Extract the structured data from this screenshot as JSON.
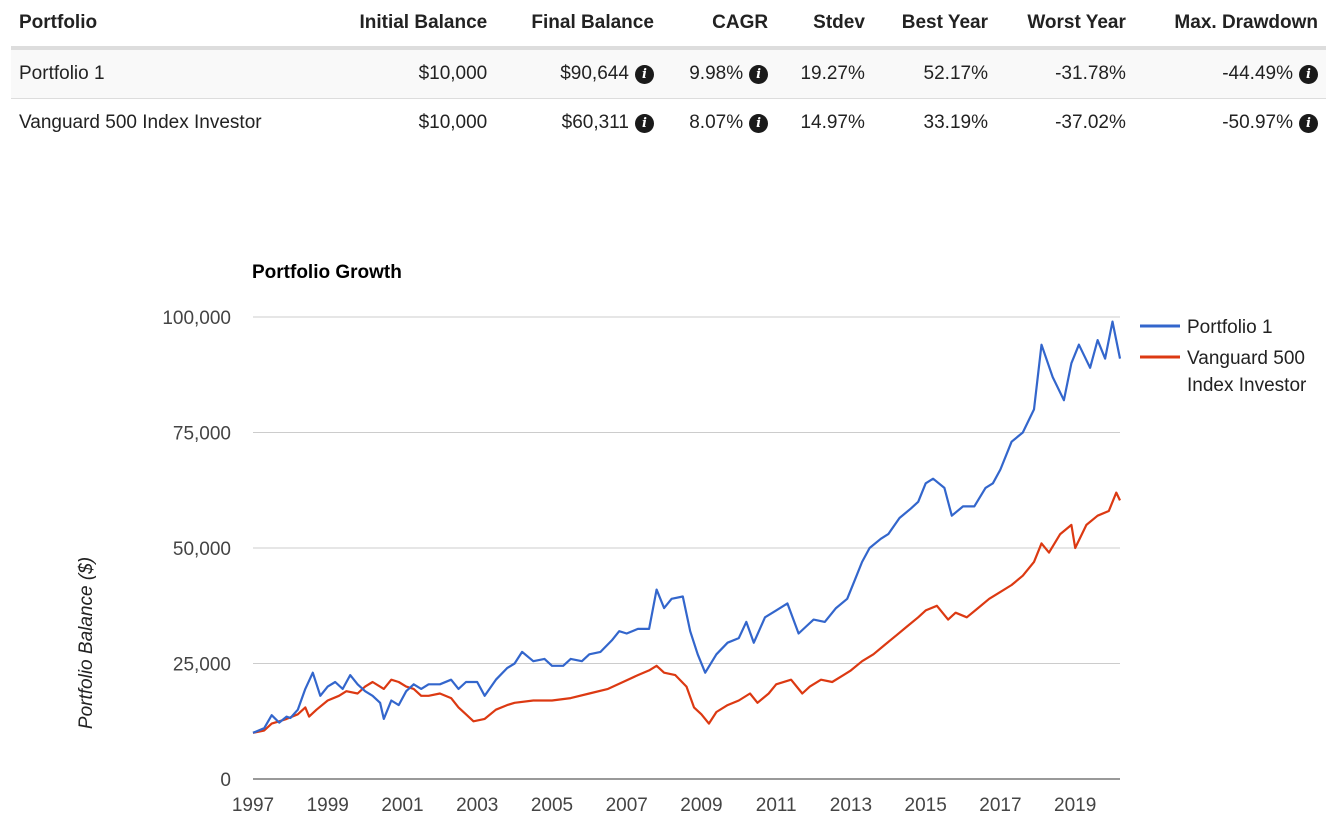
{
  "table": {
    "headers": [
      "Portfolio",
      "Initial Balance",
      "Final Balance",
      "CAGR",
      "Stdev",
      "Best Year",
      "Worst Year",
      "Max. Drawdown"
    ],
    "rows": [
      {
        "portfolio": "Portfolio 1",
        "initial": "$10,000",
        "final": "$90,644",
        "cagr": "9.98%",
        "stdev": "19.27%",
        "best": "52.17%",
        "worst": "-31.78%",
        "drawdown": "-44.49%"
      },
      {
        "portfolio": "Vanguard 500 Index Investor",
        "initial": "$10,000",
        "final": "$60,311",
        "cagr": "8.07%",
        "stdev": "14.97%",
        "best": "33.19%",
        "worst": "-37.02%",
        "drawdown": "-50.97%"
      }
    ],
    "info_icon": "info-circle-icon"
  },
  "chart_data": {
    "type": "line",
    "title": "Portfolio Growth",
    "xlabel": "",
    "ylabel": "Portfolio Balance ($)",
    "ylim": [
      0,
      100000
    ],
    "xlim": [
      1997,
      2020.2
    ],
    "yticks": [
      "0",
      "25,000",
      "50,000",
      "75,000",
      "100,000"
    ],
    "ytick_values": [
      0,
      25000,
      50000,
      75000,
      100000
    ],
    "xticks": [
      "1997",
      "1999",
      "2001",
      "2003",
      "2005",
      "2007",
      "2009",
      "2011",
      "2013",
      "2015",
      "2017",
      "2019"
    ],
    "xtick_values": [
      1997,
      1999,
      2001,
      2003,
      2005,
      2007,
      2009,
      2011,
      2013,
      2015,
      2017,
      2019
    ],
    "legend_position": "right",
    "series": [
      {
        "name": "Portfolio 1",
        "color": "#3366cc",
        "points": [
          [
            1997.0,
            10000
          ],
          [
            1997.3,
            11000
          ],
          [
            1997.5,
            13800
          ],
          [
            1997.7,
            12200
          ],
          [
            1997.9,
            13500
          ],
          [
            1998.0,
            13200
          ],
          [
            1998.2,
            15000
          ],
          [
            1998.4,
            19500
          ],
          [
            1998.6,
            23000
          ],
          [
            1998.8,
            18000
          ],
          [
            1999.0,
            20000
          ],
          [
            1999.2,
            21000
          ],
          [
            1999.4,
            19500
          ],
          [
            1999.6,
            22500
          ],
          [
            1999.8,
            20500
          ],
          [
            2000.0,
            19000
          ],
          [
            2000.2,
            18000
          ],
          [
            2000.4,
            16500
          ],
          [
            2000.5,
            13000
          ],
          [
            2000.7,
            17000
          ],
          [
            2000.9,
            16000
          ],
          [
            2001.1,
            19000
          ],
          [
            2001.3,
            20500
          ],
          [
            2001.5,
            19500
          ],
          [
            2001.7,
            20500
          ],
          [
            2002.0,
            20500
          ],
          [
            2002.3,
            21500
          ],
          [
            2002.5,
            19500
          ],
          [
            2002.7,
            21000
          ],
          [
            2003.0,
            21000
          ],
          [
            2003.2,
            18000
          ],
          [
            2003.5,
            21500
          ],
          [
            2003.8,
            24000
          ],
          [
            2004.0,
            25000
          ],
          [
            2004.2,
            27500
          ],
          [
            2004.5,
            25500
          ],
          [
            2004.8,
            26000
          ],
          [
            2005.0,
            24500
          ],
          [
            2005.3,
            24500
          ],
          [
            2005.5,
            26000
          ],
          [
            2005.8,
            25500
          ],
          [
            2006.0,
            27000
          ],
          [
            2006.3,
            27500
          ],
          [
            2006.6,
            30000
          ],
          [
            2006.8,
            32000
          ],
          [
            2007.0,
            31500
          ],
          [
            2007.3,
            32500
          ],
          [
            2007.6,
            32500
          ],
          [
            2007.8,
            41000
          ],
          [
            2008.0,
            37000
          ],
          [
            2008.2,
            39000
          ],
          [
            2008.5,
            39500
          ],
          [
            2008.7,
            32000
          ],
          [
            2008.9,
            27000
          ],
          [
            2009.1,
            23000
          ],
          [
            2009.4,
            27000
          ],
          [
            2009.7,
            29500
          ],
          [
            2010.0,
            30500
          ],
          [
            2010.2,
            34000
          ],
          [
            2010.4,
            29500
          ],
          [
            2010.7,
            35000
          ],
          [
            2011.0,
            36500
          ],
          [
            2011.3,
            38000
          ],
          [
            2011.6,
            31500
          ],
          [
            2011.8,
            33000
          ],
          [
            2012.0,
            34500
          ],
          [
            2012.3,
            34000
          ],
          [
            2012.6,
            37000
          ],
          [
            2012.9,
            39000
          ],
          [
            2013.1,
            43000
          ],
          [
            2013.3,
            47000
          ],
          [
            2013.5,
            50000
          ],
          [
            2013.8,
            52000
          ],
          [
            2014.0,
            53000
          ],
          [
            2014.3,
            56500
          ],
          [
            2014.6,
            58500
          ],
          [
            2014.8,
            60000
          ],
          [
            2015.0,
            64000
          ],
          [
            2015.2,
            65000
          ],
          [
            2015.5,
            63000
          ],
          [
            2015.7,
            57000
          ],
          [
            2016.0,
            59000
          ],
          [
            2016.3,
            59000
          ],
          [
            2016.6,
            63000
          ],
          [
            2016.8,
            64000
          ],
          [
            2017.0,
            67000
          ],
          [
            2017.3,
            73000
          ],
          [
            2017.6,
            75000
          ],
          [
            2017.9,
            80000
          ],
          [
            2018.1,
            94000
          ],
          [
            2018.4,
            87000
          ],
          [
            2018.7,
            82000
          ],
          [
            2018.9,
            90000
          ],
          [
            2019.1,
            94000
          ],
          [
            2019.4,
            89000
          ],
          [
            2019.6,
            95000
          ],
          [
            2019.8,
            91000
          ],
          [
            2020.0,
            99000
          ],
          [
            2020.2,
            91000
          ]
        ]
      },
      {
        "name": "Vanguard 500 Index Investor",
        "color": "#dc3912",
        "points": [
          [
            1997.0,
            10000
          ],
          [
            1997.3,
            10500
          ],
          [
            1997.5,
            12000
          ],
          [
            1997.7,
            12500
          ],
          [
            1997.9,
            13000
          ],
          [
            1998.2,
            14000
          ],
          [
            1998.4,
            15500
          ],
          [
            1998.5,
            13500
          ],
          [
            1998.7,
            15000
          ],
          [
            1999.0,
            17000
          ],
          [
            1999.3,
            18000
          ],
          [
            1999.5,
            19000
          ],
          [
            1999.8,
            18500
          ],
          [
            2000.0,
            20000
          ],
          [
            2000.2,
            21000
          ],
          [
            2000.5,
            19500
          ],
          [
            2000.7,
            21500
          ],
          [
            2000.9,
            21000
          ],
          [
            2001.1,
            20000
          ],
          [
            2001.3,
            19500
          ],
          [
            2001.5,
            18000
          ],
          [
            2001.7,
            18000
          ],
          [
            2002.0,
            18500
          ],
          [
            2002.3,
            17500
          ],
          [
            2002.5,
            15500
          ],
          [
            2002.7,
            14000
          ],
          [
            2002.9,
            12500
          ],
          [
            2003.2,
            13000
          ],
          [
            2003.5,
            15000
          ],
          [
            2003.8,
            16000
          ],
          [
            2004.0,
            16500
          ],
          [
            2004.5,
            17000
          ],
          [
            2005.0,
            17000
          ],
          [
            2005.5,
            17500
          ],
          [
            2006.0,
            18500
          ],
          [
            2006.5,
            19500
          ],
          [
            2006.9,
            21000
          ],
          [
            2007.3,
            22500
          ],
          [
            2007.6,
            23500
          ],
          [
            2007.8,
            24500
          ],
          [
            2008.0,
            23000
          ],
          [
            2008.3,
            22500
          ],
          [
            2008.6,
            20000
          ],
          [
            2008.8,
            15500
          ],
          [
            2009.0,
            14000
          ],
          [
            2009.2,
            12000
          ],
          [
            2009.4,
            14500
          ],
          [
            2009.7,
            16000
          ],
          [
            2010.0,
            17000
          ],
          [
            2010.3,
            18500
          ],
          [
            2010.5,
            16500
          ],
          [
            2010.8,
            18500
          ],
          [
            2011.0,
            20500
          ],
          [
            2011.4,
            21500
          ],
          [
            2011.7,
            18500
          ],
          [
            2011.9,
            20000
          ],
          [
            2012.2,
            21500
          ],
          [
            2012.5,
            21000
          ],
          [
            2012.8,
            22500
          ],
          [
            2013.0,
            23500
          ],
          [
            2013.3,
            25500
          ],
          [
            2013.6,
            27000
          ],
          [
            2013.9,
            29000
          ],
          [
            2014.2,
            31000
          ],
          [
            2014.5,
            33000
          ],
          [
            2014.8,
            35000
          ],
          [
            2015.0,
            36500
          ],
          [
            2015.3,
            37500
          ],
          [
            2015.6,
            34500
          ],
          [
            2015.8,
            36000
          ],
          [
            2016.1,
            35000
          ],
          [
            2016.4,
            37000
          ],
          [
            2016.7,
            39000
          ],
          [
            2017.0,
            40500
          ],
          [
            2017.3,
            42000
          ],
          [
            2017.6,
            44000
          ],
          [
            2017.9,
            47000
          ],
          [
            2018.1,
            51000
          ],
          [
            2018.3,
            49000
          ],
          [
            2018.6,
            53000
          ],
          [
            2018.9,
            55000
          ],
          [
            2019.0,
            50000
          ],
          [
            2019.3,
            55000
          ],
          [
            2019.6,
            57000
          ],
          [
            2019.9,
            58000
          ],
          [
            2020.1,
            62000
          ],
          [
            2020.2,
            60311
          ]
        ]
      }
    ]
  }
}
